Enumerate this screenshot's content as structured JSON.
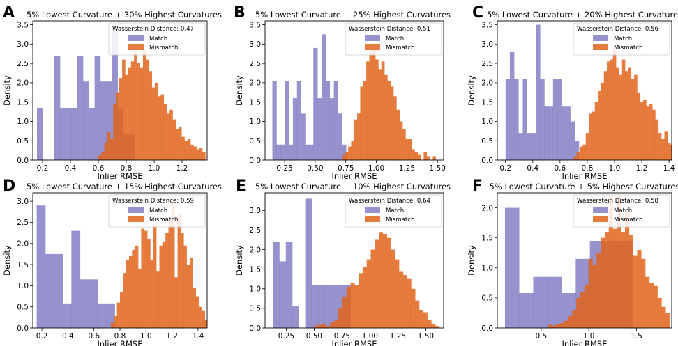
{
  "colors": {
    "match": "#7b77c0",
    "mismatch": "#e0651c",
    "match_alpha": 0.8,
    "mismatch_alpha": 0.85
  },
  "chart_data": [
    {
      "type": "histogram",
      "panel": "A",
      "title": "5% Lowest Curvature + 30% Highest Curvatures",
      "xlabel": "Inlier RMSE",
      "ylabel": "Density",
      "xlim": [
        0.13,
        1.38
      ],
      "ylim": [
        0,
        3.6
      ],
      "xticks": [
        0.2,
        0.4,
        0.6,
        0.8,
        1.0,
        1.2
      ],
      "xtick_labels": [
        "0.2",
        "0.4",
        "0.6",
        "0.8",
        "1.0",
        "1.2"
      ],
      "yticks": [
        0,
        0.5,
        1.0,
        1.5,
        2.0,
        2.5,
        3.0,
        3.5
      ],
      "ytick_labels": [
        "0.0",
        "0.5",
        "1.0",
        "1.5",
        "2.0",
        "2.5",
        "3.0",
        "3.5"
      ],
      "annotation": "Wasserstein Distance: 0.47",
      "legend": [
        "Match",
        "Mismatch"
      ],
      "legend_loc": "upper right",
      "series": [
        {
          "name": "Match",
          "bin_start": 0.16,
          "bin_width": 0.0413,
          "values": [
            1.35,
            0,
            0,
            2.7,
            1.35,
            1.35,
            1.35,
            2.7,
            2.03,
            1.35,
            2.7,
            2.03,
            2.03,
            3.38,
            1.35,
            0.68,
            0.68
          ]
        },
        {
          "name": "Mismatch",
          "bin_start": 0.6,
          "bin_width": 0.0213,
          "values": [
            0.12,
            0.2,
            0.45,
            0.72,
            0.55,
            1.45,
            1.75,
            2.12,
            2.6,
            2.2,
            2.4,
            2.55,
            2.8,
            2.52,
            2.4,
            2.85,
            2.6,
            2.3,
            1.88,
            2.0,
            1.65,
            1.7,
            1.45,
            1.2,
            1.3,
            1.05,
            0.8,
            0.85,
            0.6,
            0.5,
            0.55,
            0.4,
            0.35,
            0.28,
            0.32,
            0.2
          ]
        }
      ]
    },
    {
      "type": "histogram",
      "panel": "B",
      "title": "5% Lowest Curvature + 25% Highest Curvatures",
      "xlabel": "Inlier RMSE",
      "ylabel": "Density",
      "xlim": [
        0.09,
        1.55
      ],
      "ylim": [
        0,
        3.6
      ],
      "xticks": [
        0.25,
        0.5,
        0.75,
        1.0,
        1.25,
        1.5
      ],
      "xtick_labels": [
        "0.25",
        "0.50",
        "0.75",
        "1.00",
        "1.25",
        "1.50"
      ],
      "yticks": [
        0,
        0.5,
        1.0,
        1.5,
        2.0,
        2.5,
        3.0,
        3.5
      ],
      "ytick_labels": [
        "0.0",
        "0.5",
        "1.0",
        "1.5",
        "2.0",
        "2.5",
        "3.0",
        "3.5"
      ],
      "annotation": "Wasserstein Distance: 0.51",
      "legend": [
        "Match",
        "Mismatch"
      ],
      "legend_loc": "upper right",
      "series": [
        {
          "name": "Match",
          "bin_start": 0.15,
          "bin_width": 0.0335,
          "values": [
            2.05,
            0.4,
            0.4,
            2.05,
            0.4,
            1.6,
            2.05,
            1.2,
            0.4,
            0.4,
            2.9,
            1.6,
            3.25,
            2.05,
            1.6,
            2.05,
            1.2,
            0.4
          ]
        },
        {
          "name": "Mismatch",
          "bin_start": 0.72,
          "bin_width": 0.0247,
          "values": [
            0.12,
            0.2,
            0.35,
            0.5,
            1.05,
            1.2,
            1.9,
            2.05,
            2.55,
            2.83,
            2.9,
            2.6,
            2.35,
            2.55,
            2.2,
            2.05,
            1.9,
            1.65,
            1.3,
            1.0,
            0.8,
            0.55,
            0.55,
            0.28,
            0.2,
            0.15,
            0.0,
            0.2,
            0.1,
            0.0,
            0.1
          ]
        }
      ]
    },
    {
      "type": "histogram",
      "panel": "C",
      "title": "5% Lowest Curvature + 20% Highest Curvatures",
      "xlabel": "Inlier RMSE",
      "ylabel": "Density",
      "xlim": [
        0.14,
        1.42
      ],
      "ylim": [
        0,
        3.6
      ],
      "xticks": [
        0.2,
        0.4,
        0.6,
        0.8,
        1.0,
        1.2,
        1.4
      ],
      "xtick_labels": [
        "0.2",
        "0.4",
        "0.6",
        "0.8",
        "1.0",
        "1.2",
        "1.4"
      ],
      "yticks": [
        0,
        0.5,
        1.0,
        1.5,
        2.0,
        2.5,
        3.0,
        3.5
      ],
      "ytick_labels": [
        "0.0",
        "0.5",
        "1.0",
        "1.5",
        "2.0",
        "2.5",
        "3.0",
        "3.5"
      ],
      "annotation": "Wasserstein Distance: 0.56",
      "legend": [
        "Match",
        "Mismatch"
      ],
      "legend_loc": "upper right",
      "series": [
        {
          "name": "Match",
          "bin_start": 0.2,
          "bin_width": 0.0317,
          "values": [
            2.1,
            2.8,
            2.1,
            0.7,
            2.1,
            0.7,
            0.7,
            3.5,
            2.1,
            1.4,
            1.4,
            2.1,
            2.1,
            1.4,
            1.4,
            1.0,
            0.5
          ]
        },
        {
          "name": "Mismatch",
          "bin_start": 0.7,
          "bin_width": 0.0222,
          "values": [
            0.1,
            0.2,
            0.35,
            0.4,
            0.7,
            1.2,
            1.25,
            1.5,
            1.8,
            2.0,
            2.3,
            2.55,
            2.6,
            2.85,
            2.4,
            2.2,
            2.6,
            2.3,
            2.4,
            2.1,
            2.2,
            1.75,
            1.5,
            1.55,
            1.4,
            1.45,
            1.3,
            1.05,
            0.7,
            0.55,
            0.75,
            0.45,
            0.4,
            0.28
          ]
        }
      ]
    },
    {
      "type": "histogram",
      "panel": "D",
      "title": "5% Lowest Curvature + 15% Highest Curvatures",
      "xlabel": "Inlier RMSE",
      "ylabel": "Density",
      "xlim": [
        0.13,
        1.47
      ],
      "ylim": [
        0,
        3.2
      ],
      "xticks": [
        0.2,
        0.4,
        0.6,
        0.8,
        1.0,
        1.2,
        1.4
      ],
      "xtick_labels": [
        "0.2",
        "0.4",
        "0.6",
        "0.8",
        "1.0",
        "1.2",
        "1.4"
      ],
      "yticks": [
        0,
        0.5,
        1.0,
        1.5,
        2.0,
        2.5,
        3.0
      ],
      "ytick_labels": [
        "0.0",
        "0.5",
        "1.0",
        "1.5",
        "2.0",
        "2.5",
        "3.0"
      ],
      "annotation": "Wasserstein Distance: 0.59",
      "legend": [
        "Match",
        "Mismatch"
      ],
      "legend_loc": "upper right",
      "series": [
        {
          "name": "Match",
          "bin_start": 0.16,
          "bin_width": 0.0667,
          "values": [
            2.9,
            1.75,
            1.75,
            0.58,
            2.3,
            1.15,
            1.15,
            0.58,
            0.58
          ]
        },
        {
          "name": "Mismatch",
          "bin_start": 0.73,
          "bin_width": 0.0233,
          "values": [
            0.12,
            0.28,
            0.6,
            0.85,
            1.3,
            1.6,
            1.7,
            1.85,
            1.95,
            1.4,
            2.35,
            2.3,
            2.1,
            1.6,
            2.45,
            1.35,
            1.95,
            2.05,
            2.25,
            2.55,
            2.95,
            1.2,
            2.7,
            2.25,
            1.95,
            1.5,
            1.65,
            0.95,
            0.75,
            0.5,
            0.4,
            0.2,
            0.28,
            0.1
          ]
        }
      ]
    },
    {
      "type": "histogram",
      "panel": "E",
      "title": "5% Lowest Curvature + 10% Highest Curvatures",
      "xlabel": "Inlier RMSE",
      "ylabel": "Density",
      "xlim": [
        0.06,
        1.66
      ],
      "ylim": [
        0,
        3.45
      ],
      "xticks": [
        0.25,
        0.5,
        0.75,
        1.0,
        1.25,
        1.5
      ],
      "xtick_labels": [
        "0.25",
        "0.50",
        "0.75",
        "1.00",
        "1.25",
        "1.50"
      ],
      "yticks": [
        0,
        0.5,
        1.0,
        1.5,
        2.0,
        2.5,
        3.0
      ],
      "ytick_labels": [
        "0.0",
        "0.5",
        "1.0",
        "1.5",
        "2.0",
        "2.5",
        "3.0"
      ],
      "annotation": "Wasserstein Distance: 0.64",
      "legend": [
        "Match",
        "Mismatch"
      ],
      "legend_loc": "upper right",
      "series": [
        {
          "name": "Match",
          "bin_start": 0.13,
          "bin_width": 0.058,
          "values": [
            2.2,
            1.7,
            2.2,
            0.55,
            0.0,
            3.3,
            1.1,
            1.1,
            1.1,
            1.1,
            1.1,
            1.1
          ]
        },
        {
          "name": "Mismatch",
          "bin_start": 0.5,
          "bin_width": 0.0362,
          "values": [
            0.06,
            0.08,
            0.1,
            0.05,
            0.15,
            0.2,
            0.5,
            0.8,
            1.05,
            1.15,
            1.1,
            1.4,
            1.55,
            1.75,
            2.0,
            2.25,
            2.45,
            2.4,
            2.3,
            2.0,
            1.75,
            1.45,
            1.35,
            1.25,
            1.0,
            0.7,
            0.45,
            0.4,
            0.2,
            0.1,
            0.05
          ]
        }
      ]
    },
    {
      "type": "histogram",
      "panel": "F",
      "title": "5% Lowest Curvature + 5% Highest Curvatures",
      "xlabel": "Inlier RMSE",
      "ylabel": "Density",
      "xlim": [
        0.04,
        1.87
      ],
      "ylim": [
        0,
        2.25
      ],
      "xticks": [
        0.5,
        1.0,
        1.5
      ],
      "xtick_labels": [
        "0.5",
        "1.0",
        "1.5"
      ],
      "yticks": [
        0,
        0.5,
        1.0,
        1.5,
        2.0
      ],
      "ytick_labels": [
        "0.0",
        "0.5",
        "1.0",
        "1.5",
        "2.0"
      ],
      "annotation": "Wasserstein Distance: 0.58",
      "legend": [
        "Match",
        "Mismatch"
      ],
      "legend_loc": "upper right",
      "series": [
        {
          "name": "Match",
          "bin_start": 0.12,
          "bin_width": 0.1485,
          "values": [
            2.0,
            0.58,
            0.85,
            0.85,
            0.58,
            1.15,
            1.45,
            1.45,
            1.45
          ]
        },
        {
          "name": "Mismatch",
          "bin_start": 0.57,
          "bin_width": 0.0426,
          "values": [
            0.05,
            0.04,
            0.06,
            0.08,
            0.12,
            0.2,
            0.3,
            0.5,
            0.6,
            0.72,
            1.15,
            1.05,
            1.25,
            1.5,
            1.6,
            2.2,
            1.65,
            2.2,
            1.6,
            1.95,
            1.55,
            1.2,
            1.3,
            1.15,
            0.85,
            0.75,
            0.7,
            0.5,
            0.35,
            0.25
          ]
        }
      ]
    }
  ]
}
